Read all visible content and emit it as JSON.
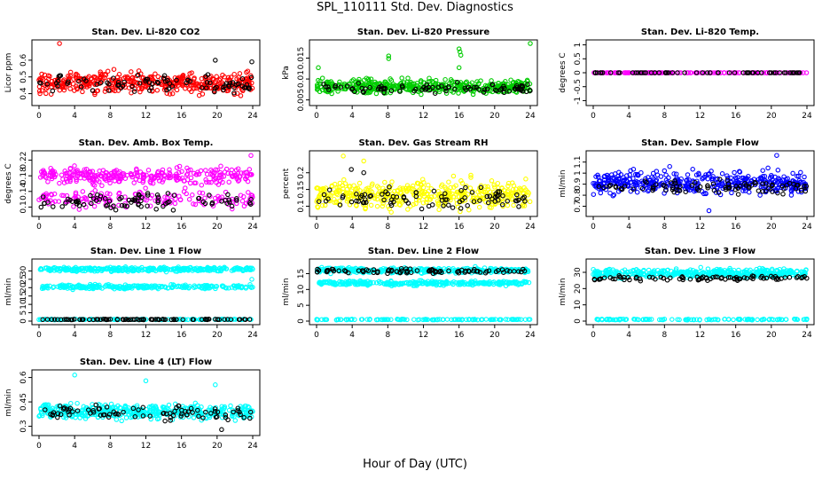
{
  "figure": {
    "title": "SPL_110111  Std. Dev. Diagnostics",
    "xlabel": "Hour of Day (UTC)"
  },
  "chart_data": [
    {
      "type": "scatter",
      "title": "Stan. Dev. Li-820 CO2",
      "ylabel": "Licor ppm",
      "xticks": [
        0,
        4,
        8,
        12,
        16,
        20,
        24
      ],
      "xlim": [
        0,
        24
      ],
      "yticks": [
        0.4,
        0.5,
        0.6
      ],
      "ylim": [
        0.35,
        0.7
      ],
      "series": [
        {
          "color": "#ff0000",
          "count": 420,
          "center": 0.465,
          "spread": 0.06,
          "outliers": [
            [
              2.3,
              0.7
            ]
          ]
        },
        {
          "color": "#000000",
          "count": 85,
          "center": 0.455,
          "spread": 0.05,
          "outliers": [
            [
              19.8,
              0.6
            ],
            [
              23.9,
              0.59
            ]
          ]
        }
      ]
    },
    {
      "type": "scatter",
      "title": "Stan. Dev. Li-820 Pressure",
      "ylabel": "kPa",
      "xticks": [
        0,
        4,
        8,
        12,
        16,
        20,
        24
      ],
      "xlim": [
        0,
        24
      ],
      "yticks": [
        0.005,
        0.01,
        0.015
      ],
      "ylim": [
        0.0045,
        0.0185
      ],
      "series": [
        {
          "color": "#00cc00",
          "count": 420,
          "center": 0.0082,
          "spread": 0.0016,
          "outliers": [
            [
              0.2,
              0.0127
            ],
            [
              8.1,
              0.0155
            ],
            [
              8.1,
              0.0149
            ],
            [
              16,
              0.0172
            ],
            [
              16.1,
              0.0165
            ],
            [
              16.2,
              0.0157
            ],
            [
              16,
              0.0127
            ],
            [
              24,
              0.0185
            ]
          ]
        },
        {
          "color": "#000000",
          "count": 85,
          "center": 0.0078,
          "spread": 0.0012,
          "outliers": [
            [
              15.8,
              0.0092
            ]
          ]
        }
      ]
    },
    {
      "type": "scatter",
      "title": "Stan. Dev. Li-820 Temp.",
      "ylabel": "degrees C",
      "xticks": [
        0,
        4,
        8,
        12,
        16,
        20,
        24
      ],
      "xlim": [
        0,
        24
      ],
      "yticks": [
        -1,
        -0.5,
        0,
        0.5,
        1
      ],
      "ylim": [
        -1.05,
        1.05
      ],
      "series": [
        {
          "color": "#ff00ff",
          "count": 150,
          "center": 0,
          "spread": 0,
          "outliers": []
        },
        {
          "color": "#000000",
          "count": 60,
          "center": 0,
          "spread": 0,
          "outliers": []
        }
      ]
    },
    {
      "type": "scatter",
      "title": "Stan. Dev. Amb. Box Temp.",
      "ylabel": "degrees C",
      "xticks": [
        0,
        4,
        8,
        12,
        16,
        20,
        24
      ],
      "xlim": [
        0,
        24
      ],
      "yticks": [
        0.1,
        0.14,
        0.18,
        0.22
      ],
      "ylim": [
        0.085,
        0.235
      ],
      "series": [
        {
          "color": "#ff00ff",
          "count": 300,
          "center": 0.18,
          "spread": 0.02,
          "outliers": []
        },
        {
          "color": "#ff00ff",
          "count": 160,
          "center": 0.12,
          "spread": 0.02,
          "outliers": [
            [
              23.8,
              0.232
            ]
          ]
        },
        {
          "color": "#000000",
          "count": 85,
          "center": 0.115,
          "spread": 0.02,
          "outliers": []
        }
      ]
    },
    {
      "type": "scatter",
      "title": "Stan. Dev. Gas Stream RH",
      "ylabel": "percent",
      "xticks": [
        0,
        4,
        8,
        12,
        16,
        20,
        24
      ],
      "xlim": [
        0,
        24
      ],
      "yticks": [
        0.1,
        0.15,
        0.2
      ],
      "ylim": [
        0.08,
        0.255
      ],
      "series": [
        {
          "color": "#ffff00",
          "count": 420,
          "center": 0.135,
          "spread": 0.04,
          "outliers": [
            [
              3,
              0.25
            ],
            [
              5.3,
              0.235
            ]
          ]
        },
        {
          "color": "#000000",
          "count": 85,
          "center": 0.125,
          "spread": 0.03,
          "outliers": [
            [
              3.9,
              0.21
            ],
            [
              5.3,
              0.2
            ]
          ]
        }
      ]
    },
    {
      "type": "scatter",
      "title": "Stan. Dev. Sample Flow",
      "ylabel": "ml/min",
      "xticks": [
        0,
        4,
        8,
        12,
        16,
        20,
        24
      ],
      "xlim": [
        0,
        24
      ],
      "yticks": [
        0.7,
        0.8,
        0.9,
        1,
        1.1
      ],
      "ylim": [
        0.64,
        1.17
      ],
      "series": [
        {
          "color": "#0000ff",
          "count": 420,
          "center": 0.91,
          "spread": 0.1,
          "outliers": [
            [
              13,
              0.66
            ],
            [
              20.6,
              1.16
            ]
          ]
        },
        {
          "color": "#000000",
          "count": 85,
          "center": 0.88,
          "spread": 0.06,
          "outliers": []
        }
      ]
    },
    {
      "type": "scatter",
      "title": "Stan. Dev. Line 1 Flow",
      "ylabel": "ml/min",
      "xticks": [
        0,
        4,
        8,
        12,
        16,
        20,
        24
      ],
      "xlim": [
        0,
        24
      ],
      "yticks": [
        0,
        5,
        10,
        15,
        20,
        25,
        30
      ],
      "ylim": [
        0,
        35
      ],
      "series": [
        {
          "color": "#00ffff",
          "count": 300,
          "center": 31,
          "spread": 1.2,
          "outliers": []
        },
        {
          "color": "#00ffff",
          "count": 250,
          "center": 20.5,
          "spread": 1.2,
          "outliers": [
            [
              23.9,
              25
            ]
          ]
        },
        {
          "color": "#00ffff",
          "count": 120,
          "center": 1,
          "spread": 0.2,
          "outliers": []
        },
        {
          "color": "#000000",
          "count": 85,
          "center": 1,
          "spread": 0.2,
          "outliers": []
        }
      ]
    },
    {
      "type": "scatter",
      "title": "Stan. Dev. Line 2 Flow",
      "ylabel": "ml/min",
      "xticks": [
        0,
        4,
        8,
        12,
        16,
        20,
        24
      ],
      "xlim": [
        0,
        24
      ],
      "yticks": [
        0,
        5,
        10,
        15
      ],
      "ylim": [
        0,
        18.5
      ],
      "series": [
        {
          "color": "#00ffff",
          "count": 300,
          "center": 16,
          "spread": 0.8,
          "outliers": []
        },
        {
          "color": "#00ffff",
          "count": 300,
          "center": 12,
          "spread": 0.7,
          "outliers": []
        },
        {
          "color": "#00ffff",
          "count": 120,
          "center": 0.5,
          "spread": 0.1,
          "outliers": []
        },
        {
          "color": "#000000",
          "count": 85,
          "center": 15.8,
          "spread": 0.8,
          "outliers": []
        }
      ]
    },
    {
      "type": "scatter",
      "title": "Stan. Dev. Line 3 Flow",
      "ylabel": "ml/min",
      "xticks": [
        0,
        4,
        8,
        12,
        16,
        20,
        24
      ],
      "xlim": [
        0,
        24
      ],
      "yticks": [
        0,
        10,
        20,
        30
      ],
      "ylim": [
        0,
        36
      ],
      "series": [
        {
          "color": "#00ffff",
          "count": 420,
          "center": 29.5,
          "spread": 2.6,
          "outliers": []
        },
        {
          "color": "#00ffff",
          "count": 120,
          "center": 1,
          "spread": 0.3,
          "outliers": []
        },
        {
          "color": "#000000",
          "count": 85,
          "center": 26.5,
          "spread": 1.4,
          "outliers": []
        }
      ]
    },
    {
      "type": "scatter",
      "title": "Stan. Dev. Line 4 (LT) Flow",
      "ylabel": "ml/min",
      "xticks": [
        0,
        4,
        8,
        12,
        16,
        20,
        24
      ],
      "xlim": [
        0,
        24
      ],
      "yticks": [
        0.3,
        0.45,
        0.6
      ],
      "ylim": [
        0.265,
        0.625
      ],
      "series": [
        {
          "color": "#00ffff",
          "count": 420,
          "center": 0.39,
          "spread": 0.045,
          "outliers": [
            [
              4,
              0.615
            ],
            [
              12,
              0.58
            ],
            [
              19.8,
              0.555
            ]
          ]
        },
        {
          "color": "#000000",
          "count": 85,
          "center": 0.385,
          "spread": 0.04,
          "outliers": [
            [
              20.5,
              0.28
            ]
          ]
        }
      ]
    }
  ]
}
